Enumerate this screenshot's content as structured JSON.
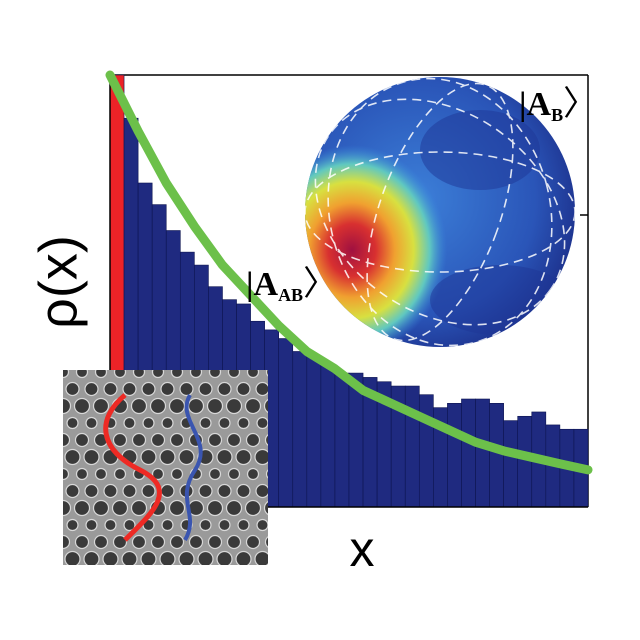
{
  "chart_data": {
    "type": "histogram",
    "xlabel": "x",
    "ylabel": "ρ(x)",
    "bins": [
      0,
      1,
      2,
      3,
      4,
      5,
      6,
      7,
      8,
      9,
      10,
      11,
      12,
      13,
      14,
      15,
      16,
      17,
      18,
      19,
      20,
      21,
      22,
      23,
      24,
      25,
      26,
      27,
      28,
      29,
      30,
      31,
      32,
      33,
      34
    ],
    "counts": [
      1.0,
      0.9,
      0.75,
      0.7,
      0.64,
      0.59,
      0.56,
      0.51,
      0.48,
      0.47,
      0.43,
      0.41,
      0.39,
      0.36,
      0.35,
      0.33,
      0.31,
      0.31,
      0.3,
      0.29,
      0.28,
      0.28,
      0.26,
      0.23,
      0.24,
      0.25,
      0.25,
      0.24,
      0.2,
      0.21,
      0.22,
      0.19,
      0.18,
      0.18
    ],
    "color": "#1f2a80",
    "first_color": "#ec2327",
    "curve": {
      "color": "#6cc04a",
      "x": [
        0,
        2,
        4,
        6,
        8,
        10,
        12,
        14,
        16,
        18,
        20,
        22,
        24,
        26,
        28,
        30,
        32,
        34
      ],
      "values": [
        1.0,
        0.87,
        0.75,
        0.65,
        0.56,
        0.49,
        0.42,
        0.36,
        0.32,
        0.27,
        0.24,
        0.21,
        0.18,
        0.15,
        0.13,
        0.115,
        0.1,
        0.086
      ]
    },
    "xlim": [
      0,
      34
    ],
    "ylim": [
      0,
      1
    ],
    "annotations": [
      {
        "open": "|",
        "main": "A",
        "sub": "AB",
        "close": "〉"
      },
      {
        "open": "|",
        "main": "A",
        "sub": "B",
        "close": "〉"
      }
    ]
  }
}
